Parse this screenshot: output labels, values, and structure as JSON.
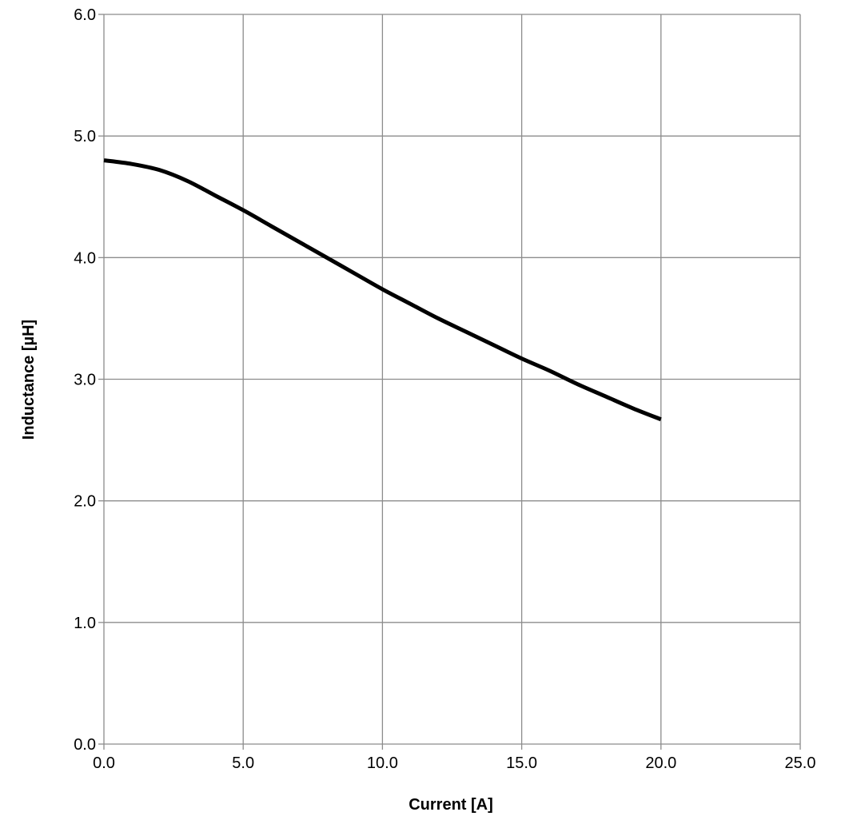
{
  "chart_data": {
    "type": "line",
    "title": "",
    "xlabel": "Current [A]",
    "ylabel": "Inductance [µH]",
    "xlim": [
      0,
      25
    ],
    "ylim": [
      0,
      6
    ],
    "xticks": [
      0,
      5,
      10,
      15,
      20,
      25
    ],
    "yticks": [
      0,
      1,
      2,
      3,
      4,
      5,
      6
    ],
    "xtick_labels": [
      "0.0",
      "5.0",
      "10.0",
      "15.0",
      "20.0",
      "25.0"
    ],
    "ytick_labels": [
      "0.0",
      "1.0",
      "2.0",
      "3.0",
      "4.0",
      "5.0",
      "6.0"
    ],
    "grid": true,
    "legend": "none",
    "series": [
      {
        "color": "#000000",
        "x": [
          0,
          1,
          2,
          3,
          4,
          5,
          6,
          7,
          8,
          9,
          10,
          11,
          12,
          13,
          14,
          15,
          16,
          17,
          18,
          19,
          20
        ],
        "y": [
          4.8,
          4.77,
          4.72,
          4.63,
          4.51,
          4.39,
          4.26,
          4.13,
          4.0,
          3.87,
          3.74,
          3.62,
          3.5,
          3.39,
          3.28,
          3.17,
          3.07,
          2.96,
          2.86,
          2.76,
          2.67
        ]
      }
    ]
  }
}
